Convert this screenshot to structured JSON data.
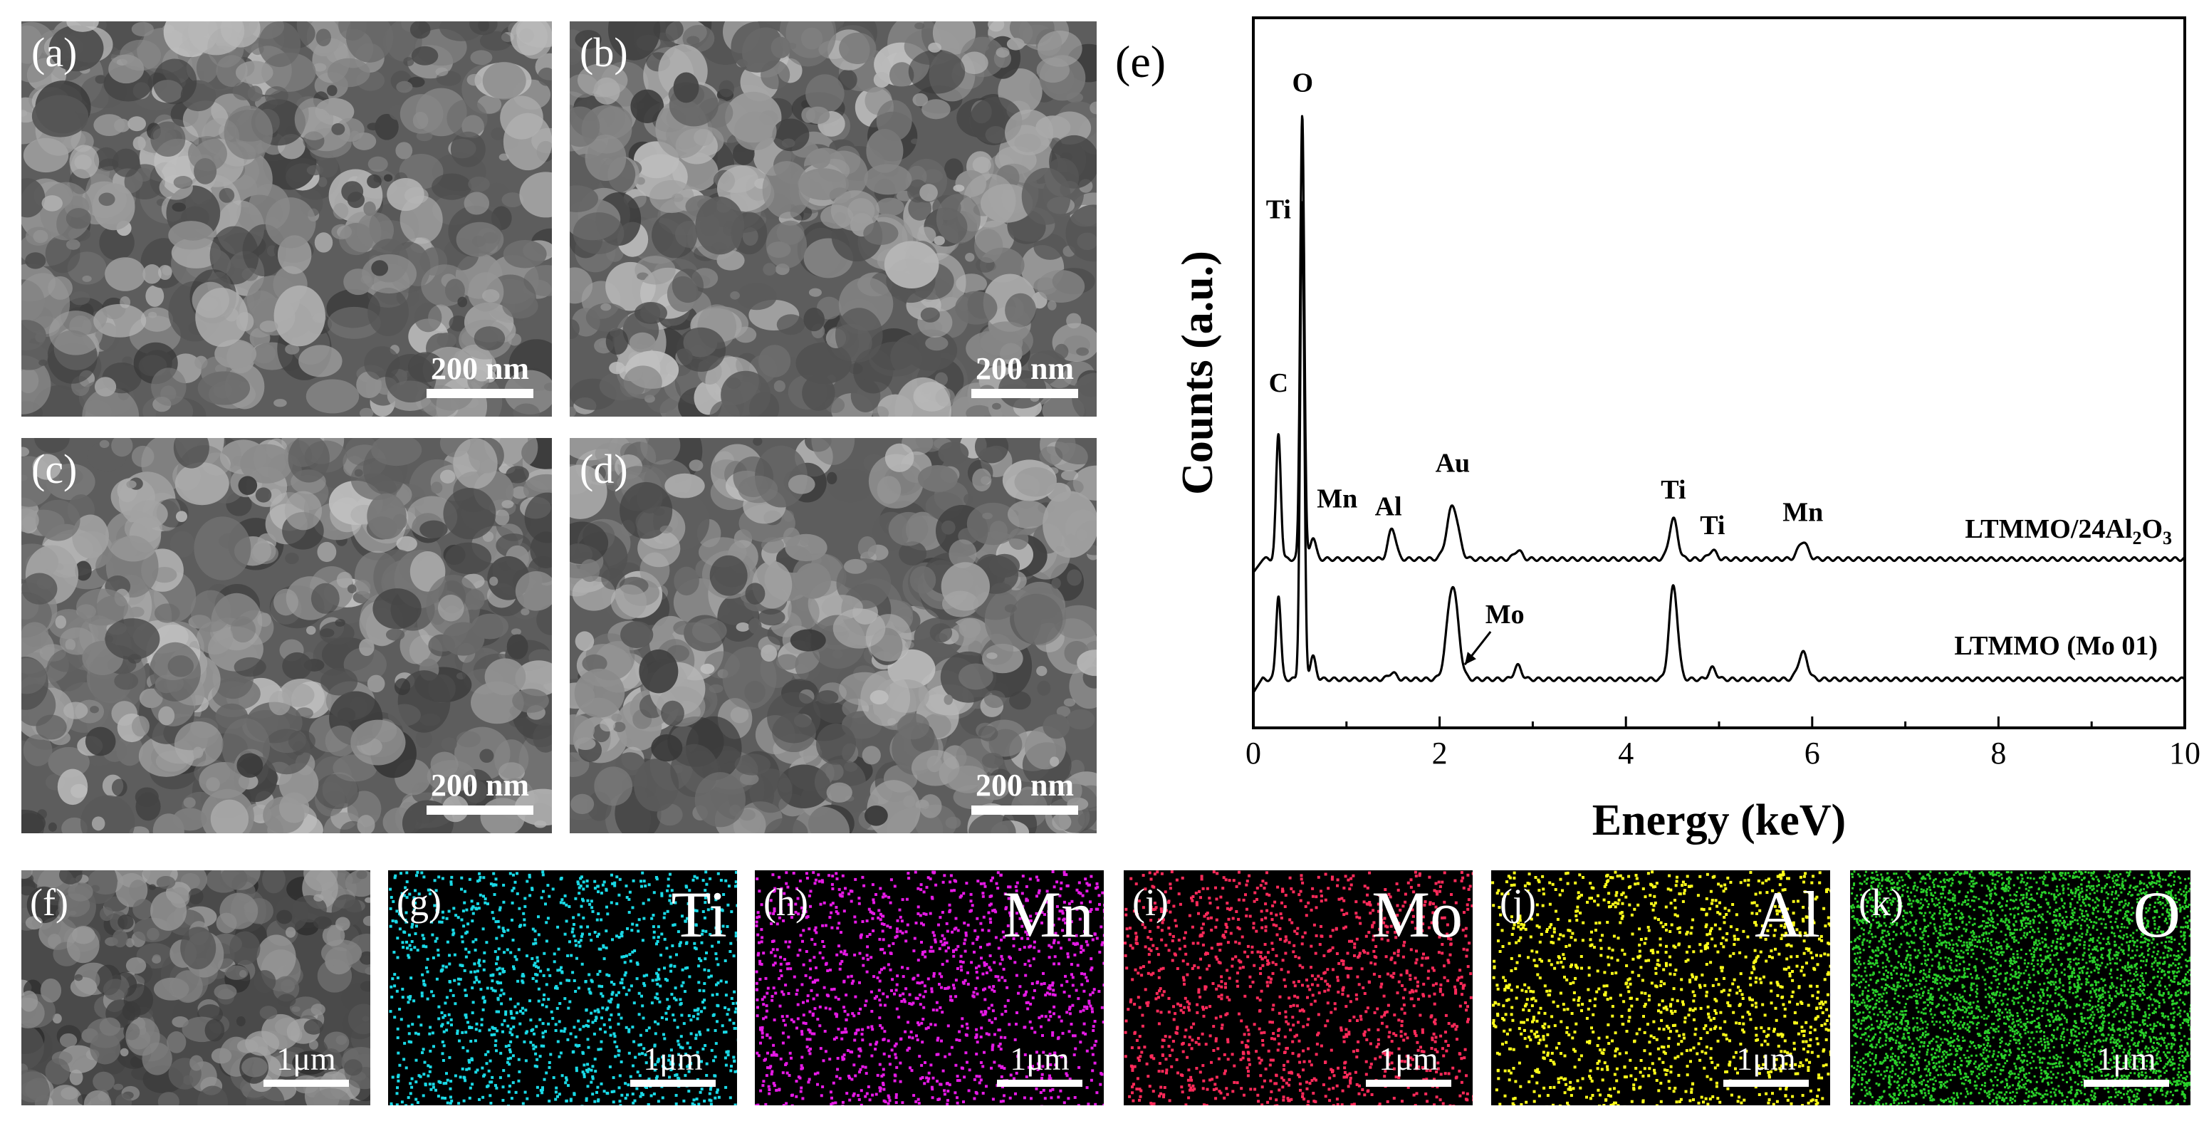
{
  "sem_panels": [
    {
      "id": "a",
      "label": "(a)",
      "scale": "200 nm"
    },
    {
      "id": "b",
      "label": "(b)",
      "scale": "200 nm"
    },
    {
      "id": "c",
      "label": "(c)",
      "scale": "200 nm"
    },
    {
      "id": "d",
      "label": "(d)",
      "scale": "200 nm"
    }
  ],
  "map_panels": [
    {
      "id": "f",
      "label": "(f)",
      "element": "",
      "scale": "1μm",
      "color": "#9a9a9a"
    },
    {
      "id": "g",
      "label": "(g)",
      "element": "Ti",
      "scale": "1μm",
      "color": "#1ad9e6"
    },
    {
      "id": "h",
      "label": "(h)",
      "element": "Mn",
      "scale": "1μm",
      "color": "#e61ae6"
    },
    {
      "id": "i",
      "label": "(i)",
      "element": "Mo",
      "scale": "1μm",
      "color": "#ff2a5a"
    },
    {
      "id": "j",
      "label": "(j)",
      "element": "Al",
      "scale": "1μm",
      "color": "#ffff1a"
    },
    {
      "id": "k",
      "label": "(k)",
      "element": "O",
      "scale": "1μm",
      "color": "#2ad12a"
    }
  ],
  "chart_data": {
    "type": "line",
    "panel_label": "(e)",
    "xlabel": "Energy (keV)",
    "ylabel": "Counts (a.u.)",
    "xlim": [
      0,
      10
    ],
    "x_ticks": [
      0,
      2,
      4,
      6,
      8,
      10
    ],
    "x_tick_labels": [
      "0",
      "2",
      "4",
      "6",
      "8",
      "10"
    ],
    "y_ticks_shown": false,
    "series": [
      {
        "name": "LTMMO/24Al2O3",
        "label_main": "LTMMO/24Al",
        "label_sub1": "2",
        "label_mid": "O",
        "label_sub2": "3",
        "baseline": 0.32,
        "peaks": [
          {
            "x": 0.27,
            "h": 0.28,
            "w": 0.025
          },
          {
            "x": 0.525,
            "h": 1.0,
            "w": 0.022
          },
          {
            "x": 0.64,
            "h": 0.05,
            "w": 0.03
          },
          {
            "x": 1.49,
            "h": 0.07,
            "w": 0.04
          },
          {
            "x": 2.14,
            "h": 0.12,
            "w": 0.06
          },
          {
            "x": 2.84,
            "h": 0.02,
            "w": 0.04
          },
          {
            "x": 4.51,
            "h": 0.09,
            "w": 0.045
          },
          {
            "x": 4.93,
            "h": 0.02,
            "w": 0.04
          },
          {
            "x": 5.9,
            "h": 0.04,
            "w": 0.05
          }
        ]
      },
      {
        "name": "LTMMO (Mo 01)",
        "baseline": 0.05,
        "peaks": [
          {
            "x": 0.27,
            "h": 0.19,
            "w": 0.025
          },
          {
            "x": 0.525,
            "h": 1.07,
            "w": 0.022
          },
          {
            "x": 0.64,
            "h": 0.05,
            "w": 0.03
          },
          {
            "x": 1.49,
            "h": 0.015,
            "w": 0.04
          },
          {
            "x": 2.14,
            "h": 0.21,
            "w": 0.06
          },
          {
            "x": 2.84,
            "h": 0.03,
            "w": 0.04
          },
          {
            "x": 4.51,
            "h": 0.21,
            "w": 0.045
          },
          {
            "x": 4.93,
            "h": 0.025,
            "w": 0.04
          },
          {
            "x": 5.9,
            "h": 0.06,
            "w": 0.05
          }
        ]
      }
    ],
    "annotations": [
      {
        "text": "O",
        "x": 0.53,
        "series": 0,
        "dy": 0.06
      },
      {
        "text": "Ti",
        "x": 0.27,
        "series": 0,
        "dy": 0.47
      },
      {
        "text": "C",
        "x": 0.27,
        "series": 0,
        "dy": 0.08
      },
      {
        "text": "Mn",
        "x": 0.9,
        "series": 0,
        "dy": 0.1
      },
      {
        "text": "Al",
        "x": 1.45,
        "series": 0,
        "dy": 0.04
      },
      {
        "text": "Au",
        "x": 2.14,
        "series": 0,
        "dy": 0.06
      },
      {
        "text": "Ti",
        "x": 4.51,
        "series": 0,
        "dy": 0.03
      },
      {
        "text": "Ti",
        "x": 4.93,
        "series": 0,
        "dy": 0.02
      },
      {
        "text": "Mn",
        "x": 5.9,
        "series": 0,
        "dy": 0.03
      },
      {
        "text": "Mo",
        "x": 2.7,
        "series": 1,
        "dy": 0.11
      }
    ]
  }
}
